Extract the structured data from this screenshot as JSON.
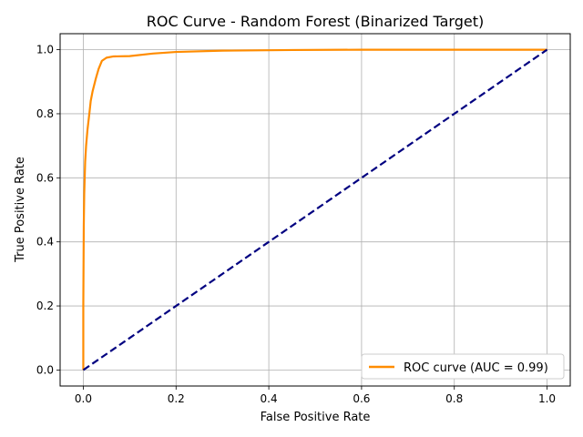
{
  "chart_data": {
    "type": "line",
    "title": "ROC Curve - Random Forest (Binarized Target)",
    "xlabel": "False Positive Rate",
    "ylabel": "True Positive Rate",
    "xlim": [
      -0.05,
      1.05
    ],
    "ylim": [
      -0.05,
      1.05
    ],
    "xticks": [
      "0.0",
      "0.2",
      "0.4",
      "0.6",
      "0.8",
      "1.0"
    ],
    "yticks": [
      "0.0",
      "0.2",
      "0.4",
      "0.6",
      "0.8",
      "1.0"
    ],
    "grid": true,
    "legend_position": "lower-right",
    "series": [
      {
        "name": "ROC curve (AUC = 0.99)",
        "color": "#ff8c00",
        "style": "solid",
        "points": [
          [
            0.0,
            0.0
          ],
          [
            0.0,
            0.2
          ],
          [
            0.001,
            0.45
          ],
          [
            0.002,
            0.55
          ],
          [
            0.004,
            0.65
          ],
          [
            0.006,
            0.7
          ],
          [
            0.009,
            0.75
          ],
          [
            0.013,
            0.8
          ],
          [
            0.016,
            0.84
          ],
          [
            0.02,
            0.87
          ],
          [
            0.027,
            0.91
          ],
          [
            0.033,
            0.94
          ],
          [
            0.04,
            0.965
          ],
          [
            0.05,
            0.975
          ],
          [
            0.065,
            0.979
          ],
          [
            0.1,
            0.98
          ],
          [
            0.15,
            0.988
          ],
          [
            0.2,
            0.993
          ],
          [
            0.3,
            0.997
          ],
          [
            0.45,
            0.999
          ],
          [
            0.6,
            1.0
          ],
          [
            1.0,
            1.0
          ]
        ]
      },
      {
        "color": "#000080",
        "style": "dashed",
        "points": [
          [
            0.0,
            0.0
          ],
          [
            1.0,
            1.0
          ]
        ]
      }
    ]
  }
}
